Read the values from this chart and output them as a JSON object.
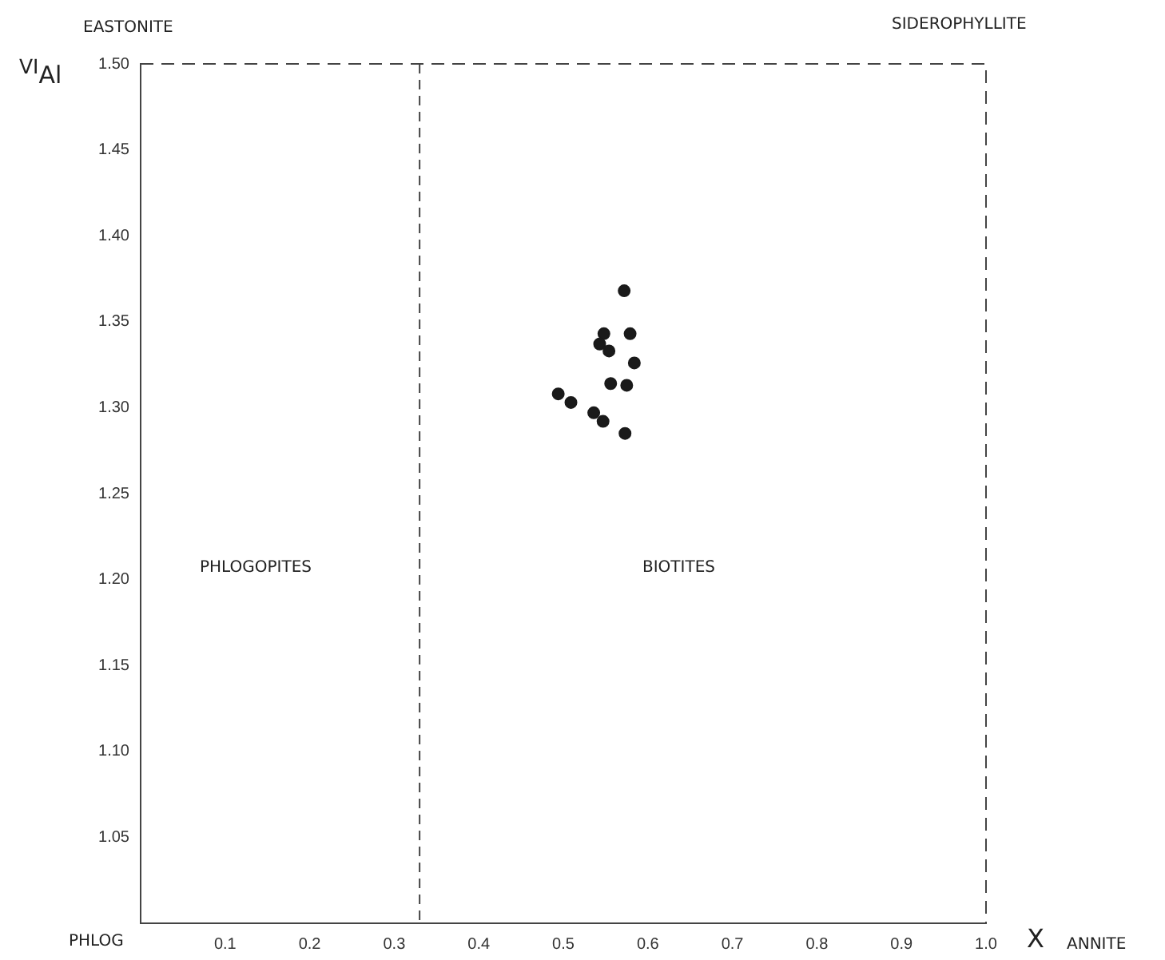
{
  "chart_data": {
    "type": "scatter",
    "xlabel": "X",
    "ylabel": "$^{VI}$Al",
    "x": [
      0.572,
      0.548,
      0.579,
      0.543,
      0.554,
      0.584,
      0.556,
      0.575,
      0.494,
      0.509,
      0.536,
      0.547,
      0.573
    ],
    "values": [
      1.368,
      1.343,
      1.343,
      1.337,
      1.333,
      1.326,
      1.314,
      1.313,
      1.308,
      1.303,
      1.297,
      1.292,
      1.285
    ],
    "color": "#1a1a1a",
    "marker": "circle",
    "grid": false,
    "xlim": [
      0,
      1
    ],
    "ylim": [
      1.0,
      1.5
    ],
    "xticks": [
      0.1,
      0.2,
      0.3,
      0.4,
      0.5,
      0.6,
      0.7,
      0.8,
      0.9,
      {
        "value": 1,
        "label": "1.0"
      }
    ],
    "yticks": [
      1.05,
      {
        "value": 1.1,
        "label": "1.10"
      },
      1.15,
      {
        "value": 1.2,
        "label": "1.20"
      },
      1.25,
      {
        "value": 1.3,
        "label": "1.30"
      },
      1.35,
      {
        "value": 1.4,
        "label": "1.40"
      },
      1.45,
      {
        "value": 1.5,
        "label": "1.50"
      }
    ],
    "ref_lines": [
      {
        "axis": "x",
        "value": 0.33,
        "line_style": "dashed",
        "color": "#444444"
      }
    ],
    "annotations": [
      "PHLOG",
      "EASTONITE",
      "SIDEROPHYLLITE",
      "ANNITE",
      "PHLOGOPITES",
      "BIOTITES"
    ]
  }
}
